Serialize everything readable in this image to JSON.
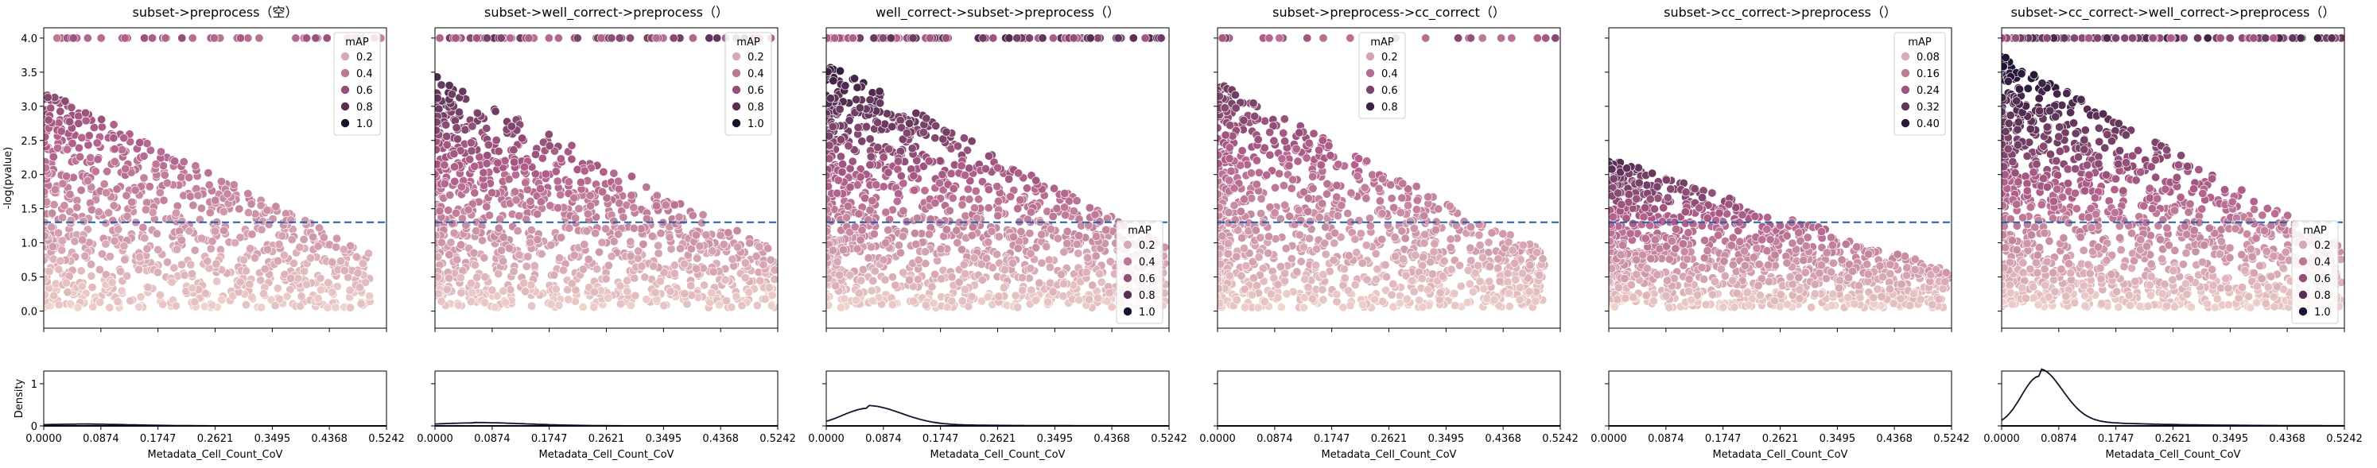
{
  "figure": {
    "ylabel_main": "-log(pvalue)",
    "ylabel_density": "Density",
    "threshold_color": "#1f5fa8",
    "kde_color": "#1a1030",
    "cmap_low": "#f1d8cf",
    "cmap_mid": "#b05f8a",
    "cmap_high": "#1a1030"
  },
  "chart_data": [
    {
      "type": "scatter",
      "title": "subset->preprocess（空）",
      "xlabel": "Metadata_Cell_Count_CoV",
      "ylabel": "-log(pvalue)",
      "xlim": [
        0,
        0.5242
      ],
      "ylim": [
        -0.25,
        4.15
      ],
      "xticks": [
        "0.0000",
        "0.0874",
        "0.1747",
        "0.2621",
        "0.3495",
        "0.4368",
        "0.5242"
      ],
      "yticks": [
        "0.0",
        "0.5",
        "1.0",
        "1.5",
        "2.0",
        "2.5",
        "3.0",
        "3.5",
        "4.0"
      ],
      "threshold": 1.301,
      "legend": {
        "title": "mAP",
        "position": "upper right",
        "items": [
          "0.2",
          "0.4",
          "0.6",
          "0.8",
          "1.0"
        ],
        "values": [
          0.2,
          0.4,
          0.6,
          0.8,
          1.0
        ],
        "max": 1.0
      },
      "sample": {
        "n": 900,
        "topRow": 45,
        "ySpan": 3.2,
        "xMax": 0.5,
        "mapMax": 0.45,
        "seed": 11
      },
      "density": {
        "ylim": [
          0,
          1.3
        ],
        "yticks": [
          "0",
          "1"
        ],
        "peak": 0.04,
        "center": 0.05,
        "width": 0.08
      }
    },
    {
      "type": "scatter",
      "title": "subset->well_correct->preprocess（）",
      "xlabel": "Metadata_Cell_Count_CoV",
      "ylabel": "",
      "xlim": [
        0,
        0.5242
      ],
      "ylim": [
        -0.25,
        4.15
      ],
      "xticks": [
        "0.0000",
        "0.0874",
        "0.1747",
        "0.2621",
        "0.3495",
        "0.4368",
        "0.5242"
      ],
      "yticks": [
        "0.0",
        "0.5",
        "1.0",
        "1.5",
        "2.0",
        "2.5",
        "3.0",
        "3.5",
        "4.0"
      ],
      "threshold": 1.301,
      "legend": {
        "title": "mAP",
        "position": "upper right",
        "items": [
          "0.2",
          "0.4",
          "0.6",
          "0.8",
          "1.0"
        ],
        "values": [
          0.2,
          0.4,
          0.6,
          0.8,
          1.0
        ],
        "max": 1.0
      },
      "sample": {
        "n": 1050,
        "topRow": 60,
        "ySpan": 3.4,
        "xMax": 0.52,
        "mapMax": 0.55,
        "seed": 23
      },
      "density": {
        "ylim": [
          0,
          1.3
        ],
        "yticks": [
          "0",
          "1"
        ],
        "peak": 0.07,
        "center": 0.06,
        "width": 0.08
      }
    },
    {
      "type": "scatter",
      "title": "well_correct->subset->preprocess（）",
      "xlabel": "Metadata_Cell_Count_CoV",
      "ylabel": "",
      "xlim": [
        0,
        0.5242
      ],
      "ylim": [
        -0.25,
        4.15
      ],
      "xticks": [
        "0.0000",
        "0.0874",
        "0.1747",
        "0.2621",
        "0.3495",
        "0.4368",
        "0.5242"
      ],
      "yticks": [
        "0.0",
        "0.5",
        "1.0",
        "1.5",
        "2.0",
        "2.5",
        "3.0",
        "3.5",
        "4.0"
      ],
      "threshold": 1.301,
      "legend": {
        "title": "mAP",
        "position": "lower right",
        "items": [
          "0.2",
          "0.4",
          "0.6",
          "0.8",
          "1.0"
        ],
        "values": [
          0.2,
          0.4,
          0.6,
          0.8,
          1.0
        ],
        "max": 1.0
      },
      "sample": {
        "n": 1200,
        "topRow": 95,
        "ySpan": 3.6,
        "xMax": 0.52,
        "mapMax": 0.6,
        "seed": 37
      },
      "density": {
        "ylim": [
          0,
          1.3
        ],
        "yticks": [
          "0",
          "1"
        ],
        "peak": 0.42,
        "center": 0.065,
        "width": 0.05
      }
    },
    {
      "type": "scatter",
      "title": "subset->preprocess->cc_correct（）",
      "xlabel": "Metadata_Cell_Count_CoV",
      "ylabel": "",
      "xlim": [
        0,
        0.5242
      ],
      "ylim": [
        -0.25,
        4.15
      ],
      "xticks": [
        "0.0000",
        "0.0874",
        "0.1747",
        "0.2621",
        "0.3495",
        "0.4368",
        "0.5242"
      ],
      "yticks": [
        "0.0",
        "0.5",
        "1.0",
        "1.5",
        "2.0",
        "2.5",
        "3.0",
        "3.5",
        "4.0"
      ],
      "threshold": 1.301,
      "legend": {
        "title": "mAP",
        "position": "upper center",
        "items": [
          "0.2",
          "0.4",
          "0.6",
          "0.8"
        ],
        "values": [
          0.2,
          0.4,
          0.6,
          0.8
        ],
        "max": 0.9
      },
      "sample": {
        "n": 1050,
        "topRow": 22,
        "ySpan": 3.3,
        "xMax": 0.5,
        "mapMax": 0.45,
        "seed": 51
      },
      "density": {
        "ylim": [
          0,
          1.3
        ],
        "yticks": [
          "0",
          "1"
        ],
        "peak": 0.0,
        "center": 0.06,
        "width": 0.08
      }
    },
    {
      "type": "scatter",
      "title": "subset->cc_correct->preprocess（）",
      "xlabel": "Metadata_Cell_Count_CoV",
      "ylabel": "",
      "xlim": [
        0,
        0.5242
      ],
      "ylim": [
        -0.25,
        4.15
      ],
      "xticks": [
        "0.0000",
        "0.0874",
        "0.1747",
        "0.2621",
        "0.3495",
        "0.4368",
        "0.5242"
      ],
      "yticks": [
        "0.0",
        "0.5",
        "1.0",
        "1.5",
        "2.0",
        "2.5",
        "3.0",
        "3.5",
        "4.0"
      ],
      "threshold": 1.301,
      "legend": {
        "title": "mAP",
        "position": "upper right",
        "items": [
          "0.08",
          "0.16",
          "0.24",
          "0.32",
          "0.40"
        ],
        "values": [
          0.08,
          0.16,
          0.24,
          0.32,
          0.4
        ],
        "max": 0.42
      },
      "sample": {
        "n": 1100,
        "topRow": 0,
        "ySpan": 2.2,
        "xMax": 0.52,
        "mapMax": 0.36,
        "seed": 67
      },
      "density": {
        "ylim": [
          0,
          1.3
        ],
        "yticks": [
          "0",
          "1"
        ],
        "peak": 0.0,
        "center": 0.06,
        "width": 0.08
      }
    },
    {
      "type": "scatter",
      "title": "subset->cc_correct->well_correct->preprocess（）",
      "xlabel": "Metadata_Cell_Count_CoV",
      "ylabel": "",
      "xlim": [
        0,
        0.5242
      ],
      "ylim": [
        -0.25,
        4.15
      ],
      "xticks": [
        "0.0000",
        "0.0874",
        "0.1747",
        "0.2621",
        "0.3495",
        "0.4368",
        "0.5242"
      ],
      "yticks": [
        "0.0",
        "0.5",
        "1.0",
        "1.5",
        "2.0",
        "2.5",
        "3.0",
        "3.5",
        "4.0"
      ],
      "threshold": 1.301,
      "legend": {
        "title": "mAP",
        "position": "lower right",
        "items": [
          "0.2",
          "0.4",
          "0.6",
          "0.8",
          "1.0"
        ],
        "values": [
          0.2,
          0.4,
          0.6,
          0.8,
          1.0
        ],
        "max": 1.0
      },
      "sample": {
        "n": 1250,
        "topRow": 120,
        "ySpan": 3.7,
        "xMax": 0.52,
        "mapMax": 0.65,
        "seed": 83
      },
      "density": {
        "ylim": [
          0,
          1.3
        ],
        "yticks": [
          "0",
          "1"
        ],
        "peak": 1.18,
        "center": 0.058,
        "width": 0.035
      }
    }
  ]
}
